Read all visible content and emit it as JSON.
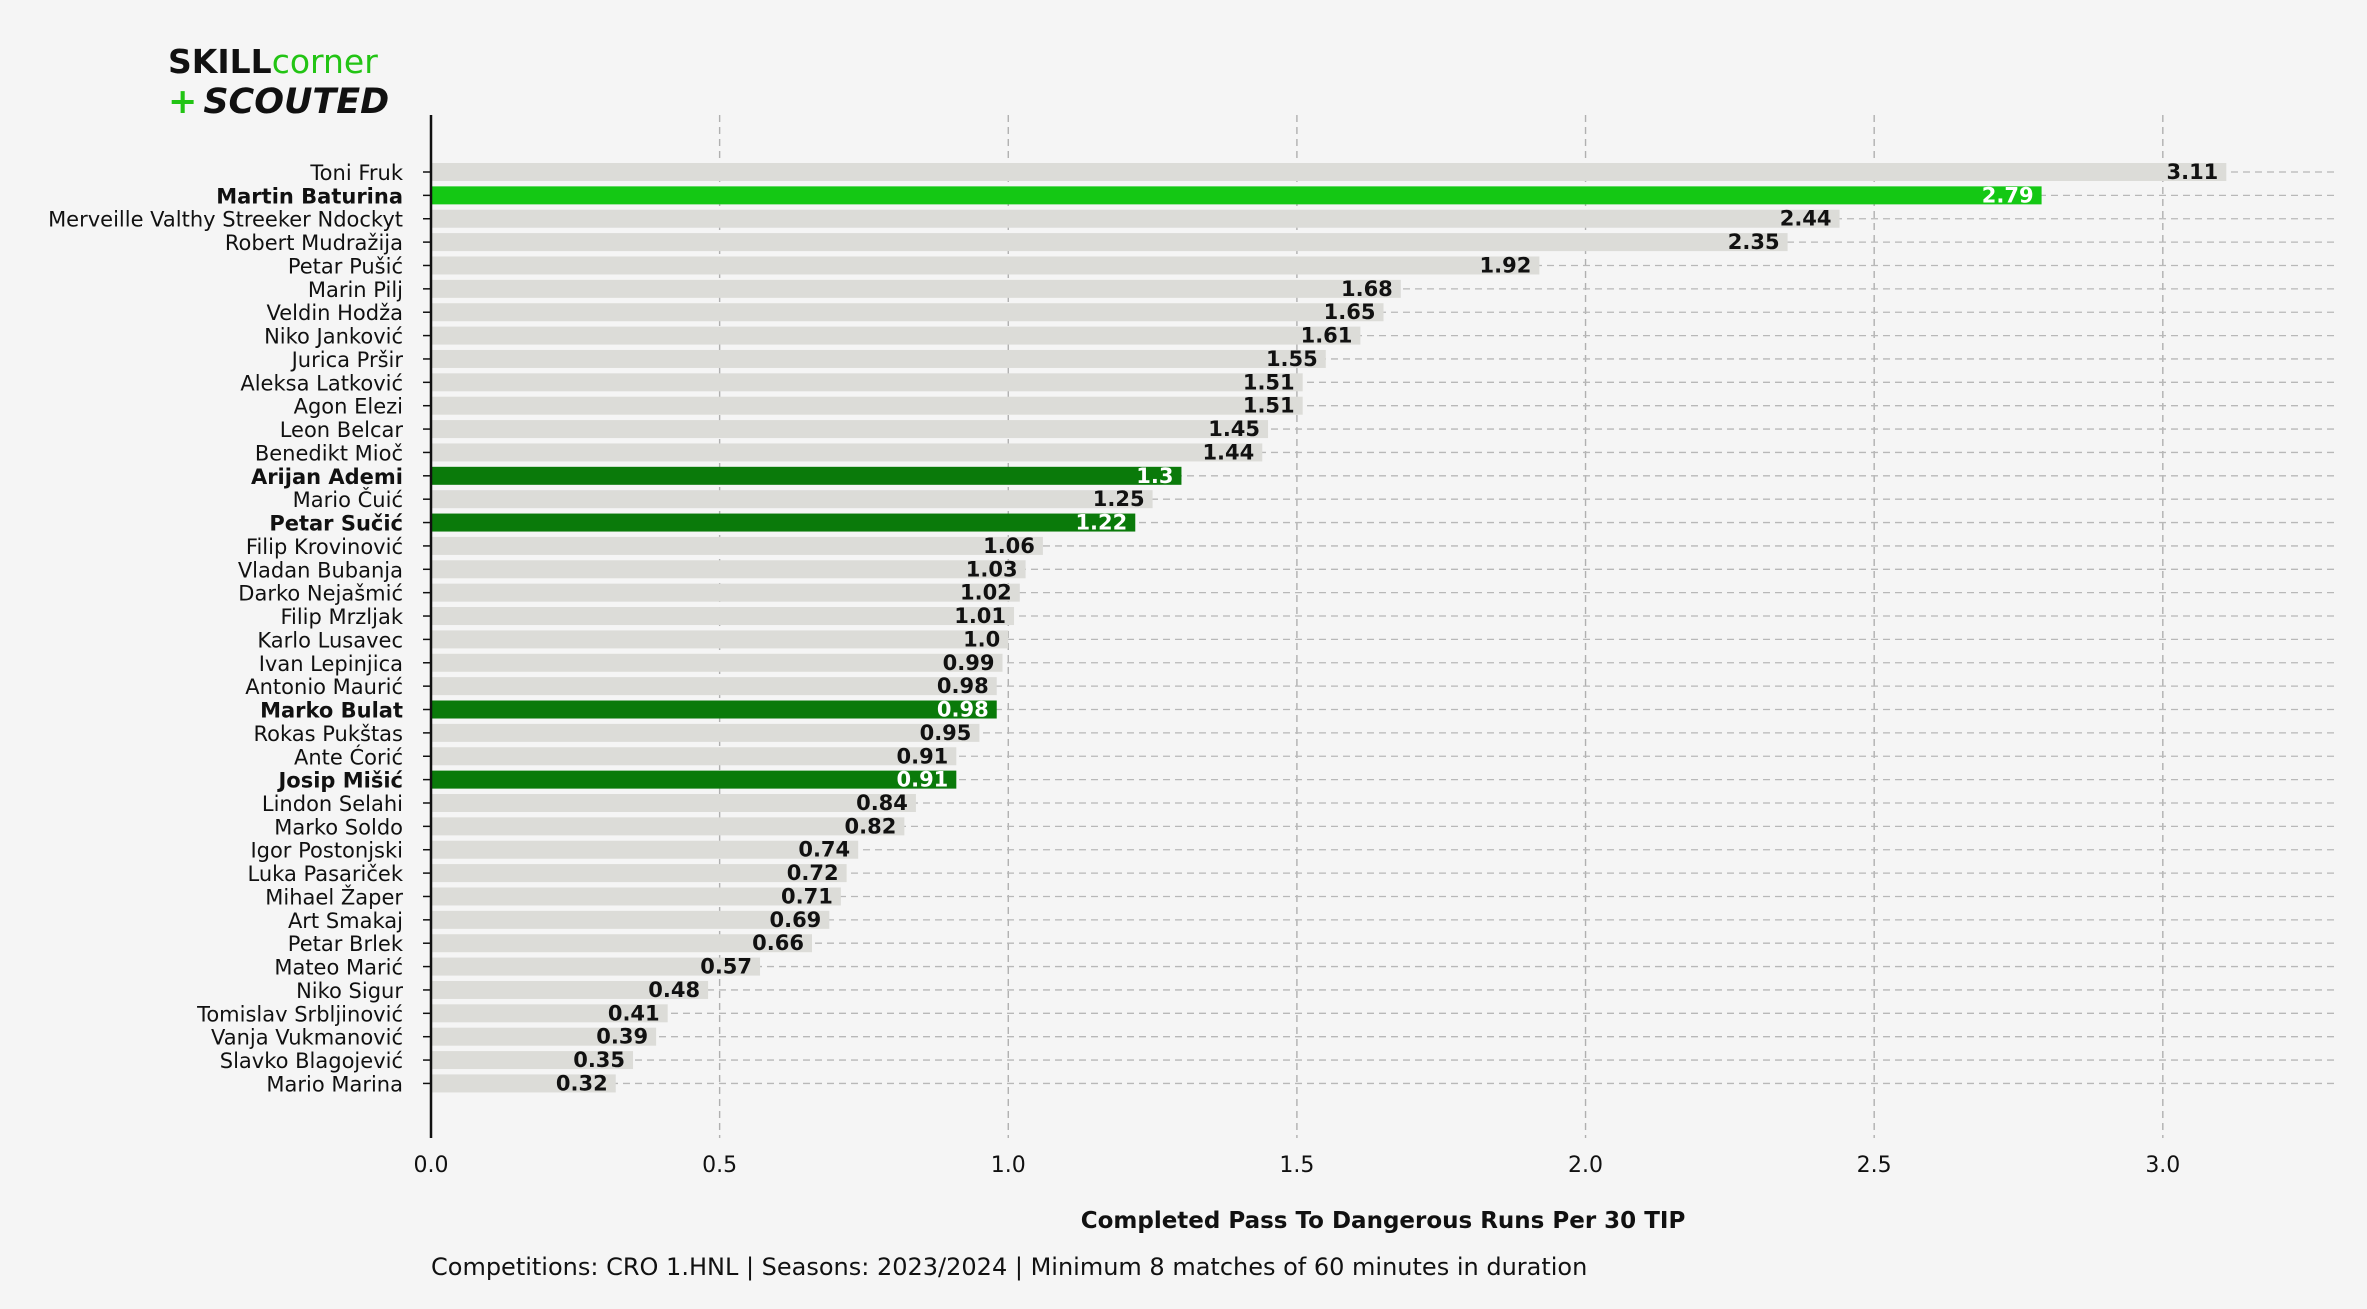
{
  "logo": {
    "line1_a": "SKILL",
    "line1_b": "corner",
    "line2_plus": "+",
    "line2_text": "SCOUTED",
    "colors": {
      "dark": "#111111",
      "green": "#22c414"
    }
  },
  "footer": "Competitions: CRO 1.HNL | Seasons: 2023/2024 | Minimum 8 matches of 60 minutes in duration",
  "chart_data": {
    "type": "bar",
    "orientation": "horizontal",
    "xlabel": "Completed Pass To Dangerous Runs Per 30 TIP",
    "xlim": [
      0,
      3.3
    ],
    "xticks": [
      "0.0",
      "0.5",
      "1.0",
      "1.5",
      "2.0",
      "2.5",
      "3.0"
    ],
    "grid": true,
    "colors": {
      "default": "#dcdcd8",
      "primary_highlight": "#14c814",
      "secondary_highlight": "#0a7a0a"
    },
    "bars": [
      {
        "name": "Toni Fruk",
        "value": 3.11,
        "label": "3.11",
        "highlight": "none"
      },
      {
        "name": "Martin Baturina",
        "value": 2.79,
        "label": "2.79",
        "highlight": "primary"
      },
      {
        "name": "Merveille Valthy Streeker Ndockyt",
        "value": 2.44,
        "label": "2.44",
        "highlight": "none"
      },
      {
        "name": "Robert Mudražija",
        "value": 2.35,
        "label": "2.35",
        "highlight": "none"
      },
      {
        "name": "Petar Pušić",
        "value": 1.92,
        "label": "1.92",
        "highlight": "none"
      },
      {
        "name": "Marin Pilj",
        "value": 1.68,
        "label": "1.68",
        "highlight": "none"
      },
      {
        "name": "Veldin Hodža",
        "value": 1.65,
        "label": "1.65",
        "highlight": "none"
      },
      {
        "name": "Niko Janković",
        "value": 1.61,
        "label": "1.61",
        "highlight": "none"
      },
      {
        "name": "Jurica Pršir",
        "value": 1.55,
        "label": "1.55",
        "highlight": "none"
      },
      {
        "name": "Aleksa Latković",
        "value": 1.51,
        "label": "1.51",
        "highlight": "none"
      },
      {
        "name": "Agon Elezi",
        "value": 1.51,
        "label": "1.51",
        "highlight": "none"
      },
      {
        "name": "Leon Belcar",
        "value": 1.45,
        "label": "1.45",
        "highlight": "none"
      },
      {
        "name": "Benedikt Mioč",
        "value": 1.44,
        "label": "1.44",
        "highlight": "none"
      },
      {
        "name": "Arijan Ademi",
        "value": 1.3,
        "label": "1.3",
        "highlight": "secondary"
      },
      {
        "name": "Mario Čuić",
        "value": 1.25,
        "label": "1.25",
        "highlight": "none"
      },
      {
        "name": "Petar Sučić",
        "value": 1.22,
        "label": "1.22",
        "highlight": "secondary"
      },
      {
        "name": "Filip Krovinović",
        "value": 1.06,
        "label": "1.06",
        "highlight": "none"
      },
      {
        "name": "Vladan Bubanja",
        "value": 1.03,
        "label": "1.03",
        "highlight": "none"
      },
      {
        "name": "Darko Nejašmić",
        "value": 1.02,
        "label": "1.02",
        "highlight": "none"
      },
      {
        "name": "Filip Mrzljak",
        "value": 1.01,
        "label": "1.01",
        "highlight": "none"
      },
      {
        "name": "Karlo Lusavec",
        "value": 1.0,
        "label": "1.0",
        "highlight": "none"
      },
      {
        "name": "Ivan Lepinjica",
        "value": 0.99,
        "label": "0.99",
        "highlight": "none"
      },
      {
        "name": "Antonio Maurić",
        "value": 0.98,
        "label": "0.98",
        "highlight": "none"
      },
      {
        "name": "Marko Bulat",
        "value": 0.98,
        "label": "0.98",
        "highlight": "secondary"
      },
      {
        "name": "Rokas Pukštas",
        "value": 0.95,
        "label": "0.95",
        "highlight": "none"
      },
      {
        "name": "Ante Ćorić",
        "value": 0.91,
        "label": "0.91",
        "highlight": "none"
      },
      {
        "name": "Josip Mišić",
        "value": 0.91,
        "label": "0.91",
        "highlight": "secondary"
      },
      {
        "name": "Lindon Selahi",
        "value": 0.84,
        "label": "0.84",
        "highlight": "none"
      },
      {
        "name": "Marko Soldo",
        "value": 0.82,
        "label": "0.82",
        "highlight": "none"
      },
      {
        "name": "Igor Postonjski",
        "value": 0.74,
        "label": "0.74",
        "highlight": "none"
      },
      {
        "name": "Luka Pasariček",
        "value": 0.72,
        "label": "0.72",
        "highlight": "none"
      },
      {
        "name": "Mihael Žaper",
        "value": 0.71,
        "label": "0.71",
        "highlight": "none"
      },
      {
        "name": "Art Smakaj",
        "value": 0.69,
        "label": "0.69",
        "highlight": "none"
      },
      {
        "name": "Petar Brlek",
        "value": 0.66,
        "label": "0.66",
        "highlight": "none"
      },
      {
        "name": "Mateo Marić",
        "value": 0.57,
        "label": "0.57",
        "highlight": "none"
      },
      {
        "name": "Niko Sigur",
        "value": 0.48,
        "label": "0.48",
        "highlight": "none"
      },
      {
        "name": "Tomislav Srbljinović",
        "value": 0.41,
        "label": "0.41",
        "highlight": "none"
      },
      {
        "name": "Vanja Vukmanović",
        "value": 0.39,
        "label": "0.39",
        "highlight": "none"
      },
      {
        "name": "Slavko Blagojević",
        "value": 0.35,
        "label": "0.35",
        "highlight": "none"
      },
      {
        "name": "Mario Marina",
        "value": 0.32,
        "label": "0.32",
        "highlight": "none"
      }
    ]
  }
}
